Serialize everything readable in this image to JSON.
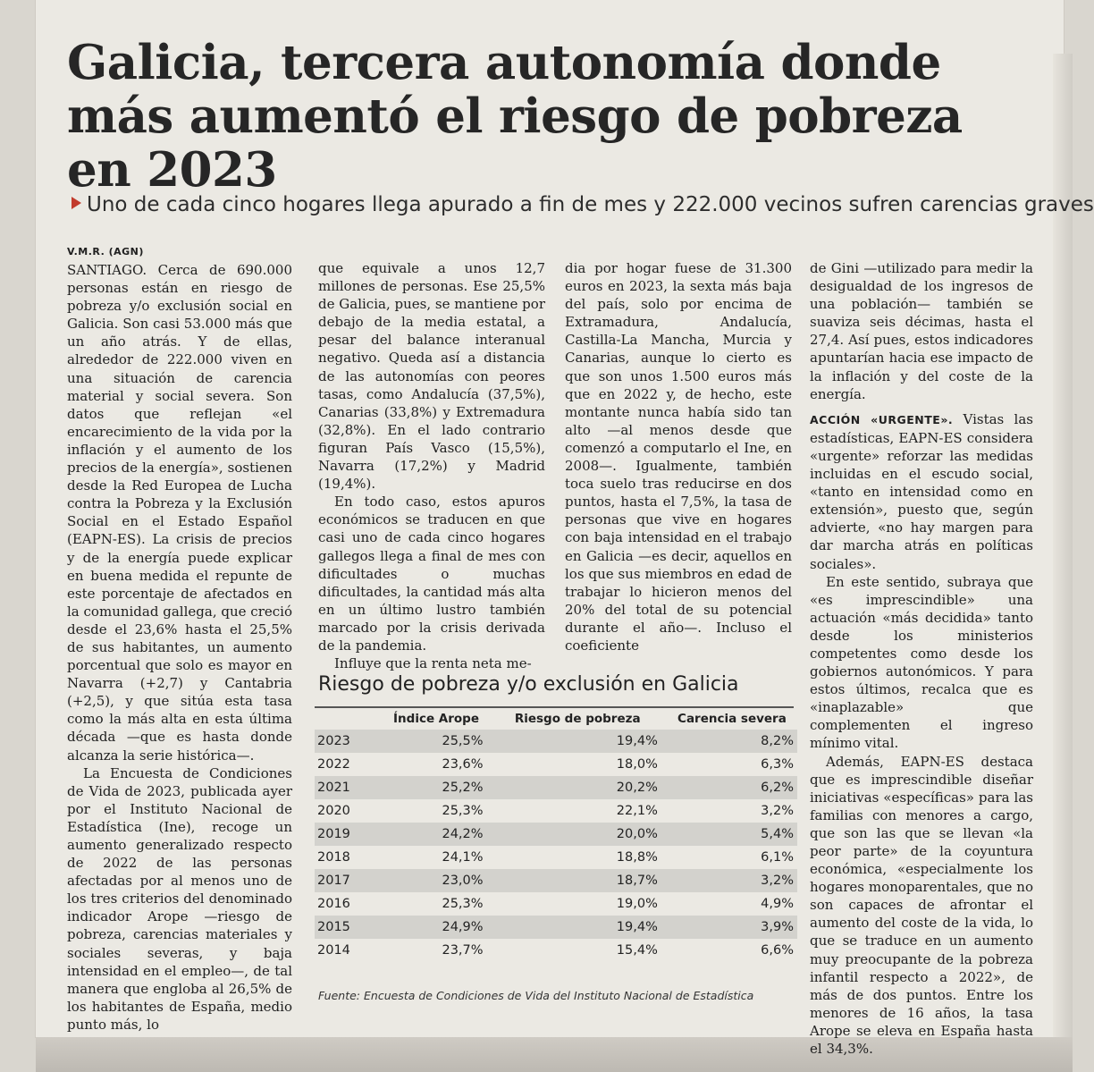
{
  "headline": "Galicia, tercera autonomía donde más aumentó el riesgo de pobreza en 2023",
  "subhead": "Uno de cada cinco hogares llega apurado a fin de mes y 222.000 vecinos sufren carencias graves",
  "byline": "V.M.R. (AGN)",
  "col1": {
    "p1": "SANTIAGO. Cerca de 690.000 personas están en riesgo de pobreza y/o exclusión social en Galicia. Son casi 53.000 más que un año atrás. Y de ellas, alrededor de 222.000 viven en una situación de carencia material y social severa. Son datos que reflejan «el encarecimiento de la vida por la inflación y el aumento de los precios de la energía», sostienen desde la Red Europea de Lucha contra la Pobreza y la Exclusión Social en el Estado Español (EAPN-ES). La crisis de precios y de la energía puede explicar en buena medida el repunte de este porcentaje de afectados en la comunidad gallega, que creció desde el 23,6% hasta el 25,5% de sus habitantes, un aumento porcentual que solo es mayor en Navarra (+2,7) y Cantabria (+2,5), y que sitúa esta tasa como la más alta en esta última década —que es hasta donde alcanza la serie histórica—.",
    "p2": "La Encuesta de Condiciones de Vida de 2023, publicada ayer por el Instituto Nacional de Estadística (Ine), recoge un aumento generalizado respecto de 2022 de las personas afectadas por al menos uno de los tres criterios del denominado indicador Arope —riesgo de pobreza, carencias materiales y sociales severas, y baja intensidad en el empleo—, de tal manera que engloba al 26,5% de los habitantes de España, medio punto más, lo"
  },
  "col2": {
    "p1": "que equivale a unos 12,7 millones de personas. Ese 25,5% de Galicia, pues, se mantiene por debajo de la media estatal, a pesar del balance interanual negativo. Queda así a distancia de las autonomías con peores tasas, como Andalucía (37,5%), Canarias (33,8%) y Extremadura (32,8%). En el lado contrario figuran País Vasco (15,5%), Navarra (17,2%) y Madrid (19,4%).",
    "p2": "En todo caso, estos apuros económicos se traducen en que casi uno de cada cinco hogares gallegos llega a final de mes con dificultades o muchas dificultades, la cantidad más alta en un último lustro también marcado por la crisis derivada de la pandemia.",
    "p3": "Influye que la renta neta me-"
  },
  "col3": {
    "p1": "dia por hogar fuese de 31.300 euros en 2023, la sexta más baja del país, solo por encima de Extramadura, Andalucía, Castilla-La Mancha, Murcia y Canarias, aunque lo cierto es que son unos 1.500 euros más que en 2022 y, de hecho, este montante nunca había sido tan alto —al menos desde que comenzó a computarlo el Ine, en 2008—. Igualmente, también toca suelo tras reducirse en dos puntos, hasta el 7,5%, la tasa de personas que vive en hogares con baja intensidad en el trabajo en Galicia —es decir, aquellos en los que sus miembros en edad de trabajar lo hicieron menos del 20% del total de su potencial durante el año—. Incluso el coeficiente"
  },
  "col4": {
    "p1": "de Gini —utilizado para medir la desigualdad de los ingresos de una población— también se suaviza seis décimas, hasta el 27,4. Así pues, estos indicadores apuntarían hacia ese impacto de la inflación y del coste de la energía.",
    "section_tag": "ACCIÓN «URGENTE».",
    "p2": "Vistas las estadísticas, EAPN-ES considera «urgente» reforzar las medidas incluidas en el escudo social, «tanto en intensidad como en extensión», puesto que, según advierte, «no hay margen para dar marcha atrás en políticas sociales».",
    "p3": "En este sentido, subraya que «es imprescindible» una actuación «más decidida» tanto desde los ministerios competentes como desde los gobiernos autonómicos. Y para estos últimos, recalca que es «inaplazable» que complementen el ingreso mínimo vital.",
    "p4": "Además, EAPN-ES destaca que es imprescindible diseñar iniciativas «específicas» para las familias con menores a cargo, que son las que se llevan «la peor parte» de la coyuntura económica, «especialmente los hogares monoparentales, que no son capaces de afrontar el aumento del coste de la vida, lo que se traduce en un aumento muy preocupante de la pobreza infantil respecto a 2022», de más de dos puntos. Entre los menores de 16 años, la tasa Arope se eleva en España hasta el 34,3%."
  },
  "table": {
    "title": "Riesgo de pobreza y/o exclusión en Galicia",
    "headers": [
      "",
      "Índice Arope",
      "Riesgo de pobreza",
      "Carencia severa"
    ],
    "rows": [
      [
        "2023",
        "25,5%",
        "19,4%",
        "8,2%"
      ],
      [
        "2022",
        "23,6%",
        "18,0%",
        "6,3%"
      ],
      [
        "2021",
        "25,2%",
        "20,2%",
        "6,2%"
      ],
      [
        "2020",
        "25,3%",
        "22,1%",
        "3,2%"
      ],
      [
        "2019",
        "24,2%",
        "20,0%",
        "5,4%"
      ],
      [
        "2018",
        "24,1%",
        "18,8%",
        "6,1%"
      ],
      [
        "2017",
        "23,0%",
        "18,7%",
        "3,2%"
      ],
      [
        "2016",
        "25,3%",
        "19,0%",
        "4,9%"
      ],
      [
        "2015",
        "24,9%",
        "19,4%",
        "3,9%"
      ],
      [
        "2014",
        "23,7%",
        "15,4%",
        "6,6%"
      ]
    ],
    "source": "Fuente: Encuesta de Condiciones de Vida del Instituto Nacional de Estadística"
  },
  "colors": {
    "accent": "#c23b2c",
    "row_shade": "#d3d2cd",
    "paper": "#ebe9e3"
  }
}
